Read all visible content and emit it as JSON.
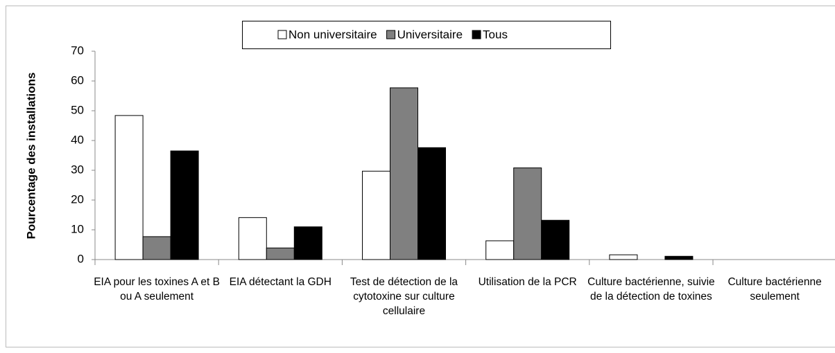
{
  "chart_data": {
    "type": "bar",
    "y_label": "Pourcentage des installations",
    "categories": [
      "EIA pour les toxines A et B ou A seulement",
      "EIA détectant la GDH",
      "Test de détection de la cytotoxine sur culture cellulaire",
      "Utilisation de la PCR",
      "Culture bactérienne, suivie de la détection de toxines",
      "Culture bactérienne seulement"
    ],
    "series": [
      {
        "name": "Non universitaire",
        "color": "#ffffff",
        "values": [
          48.4,
          14.1,
          29.7,
          6.3,
          1.6,
          0
        ]
      },
      {
        "name": "Universitaire",
        "color": "#808080",
        "values": [
          7.7,
          3.9,
          57.7,
          30.8,
          0,
          0
        ]
      },
      {
        "name": "Tous",
        "color": "#000000",
        "values": [
          36.5,
          11.0,
          37.6,
          13.2,
          1.1,
          0
        ]
      }
    ],
    "ylim": [
      0,
      70
    ],
    "yticks": [
      0,
      10,
      20,
      30,
      40,
      50,
      60,
      70
    ],
    "grid": false,
    "legend": "top"
  }
}
